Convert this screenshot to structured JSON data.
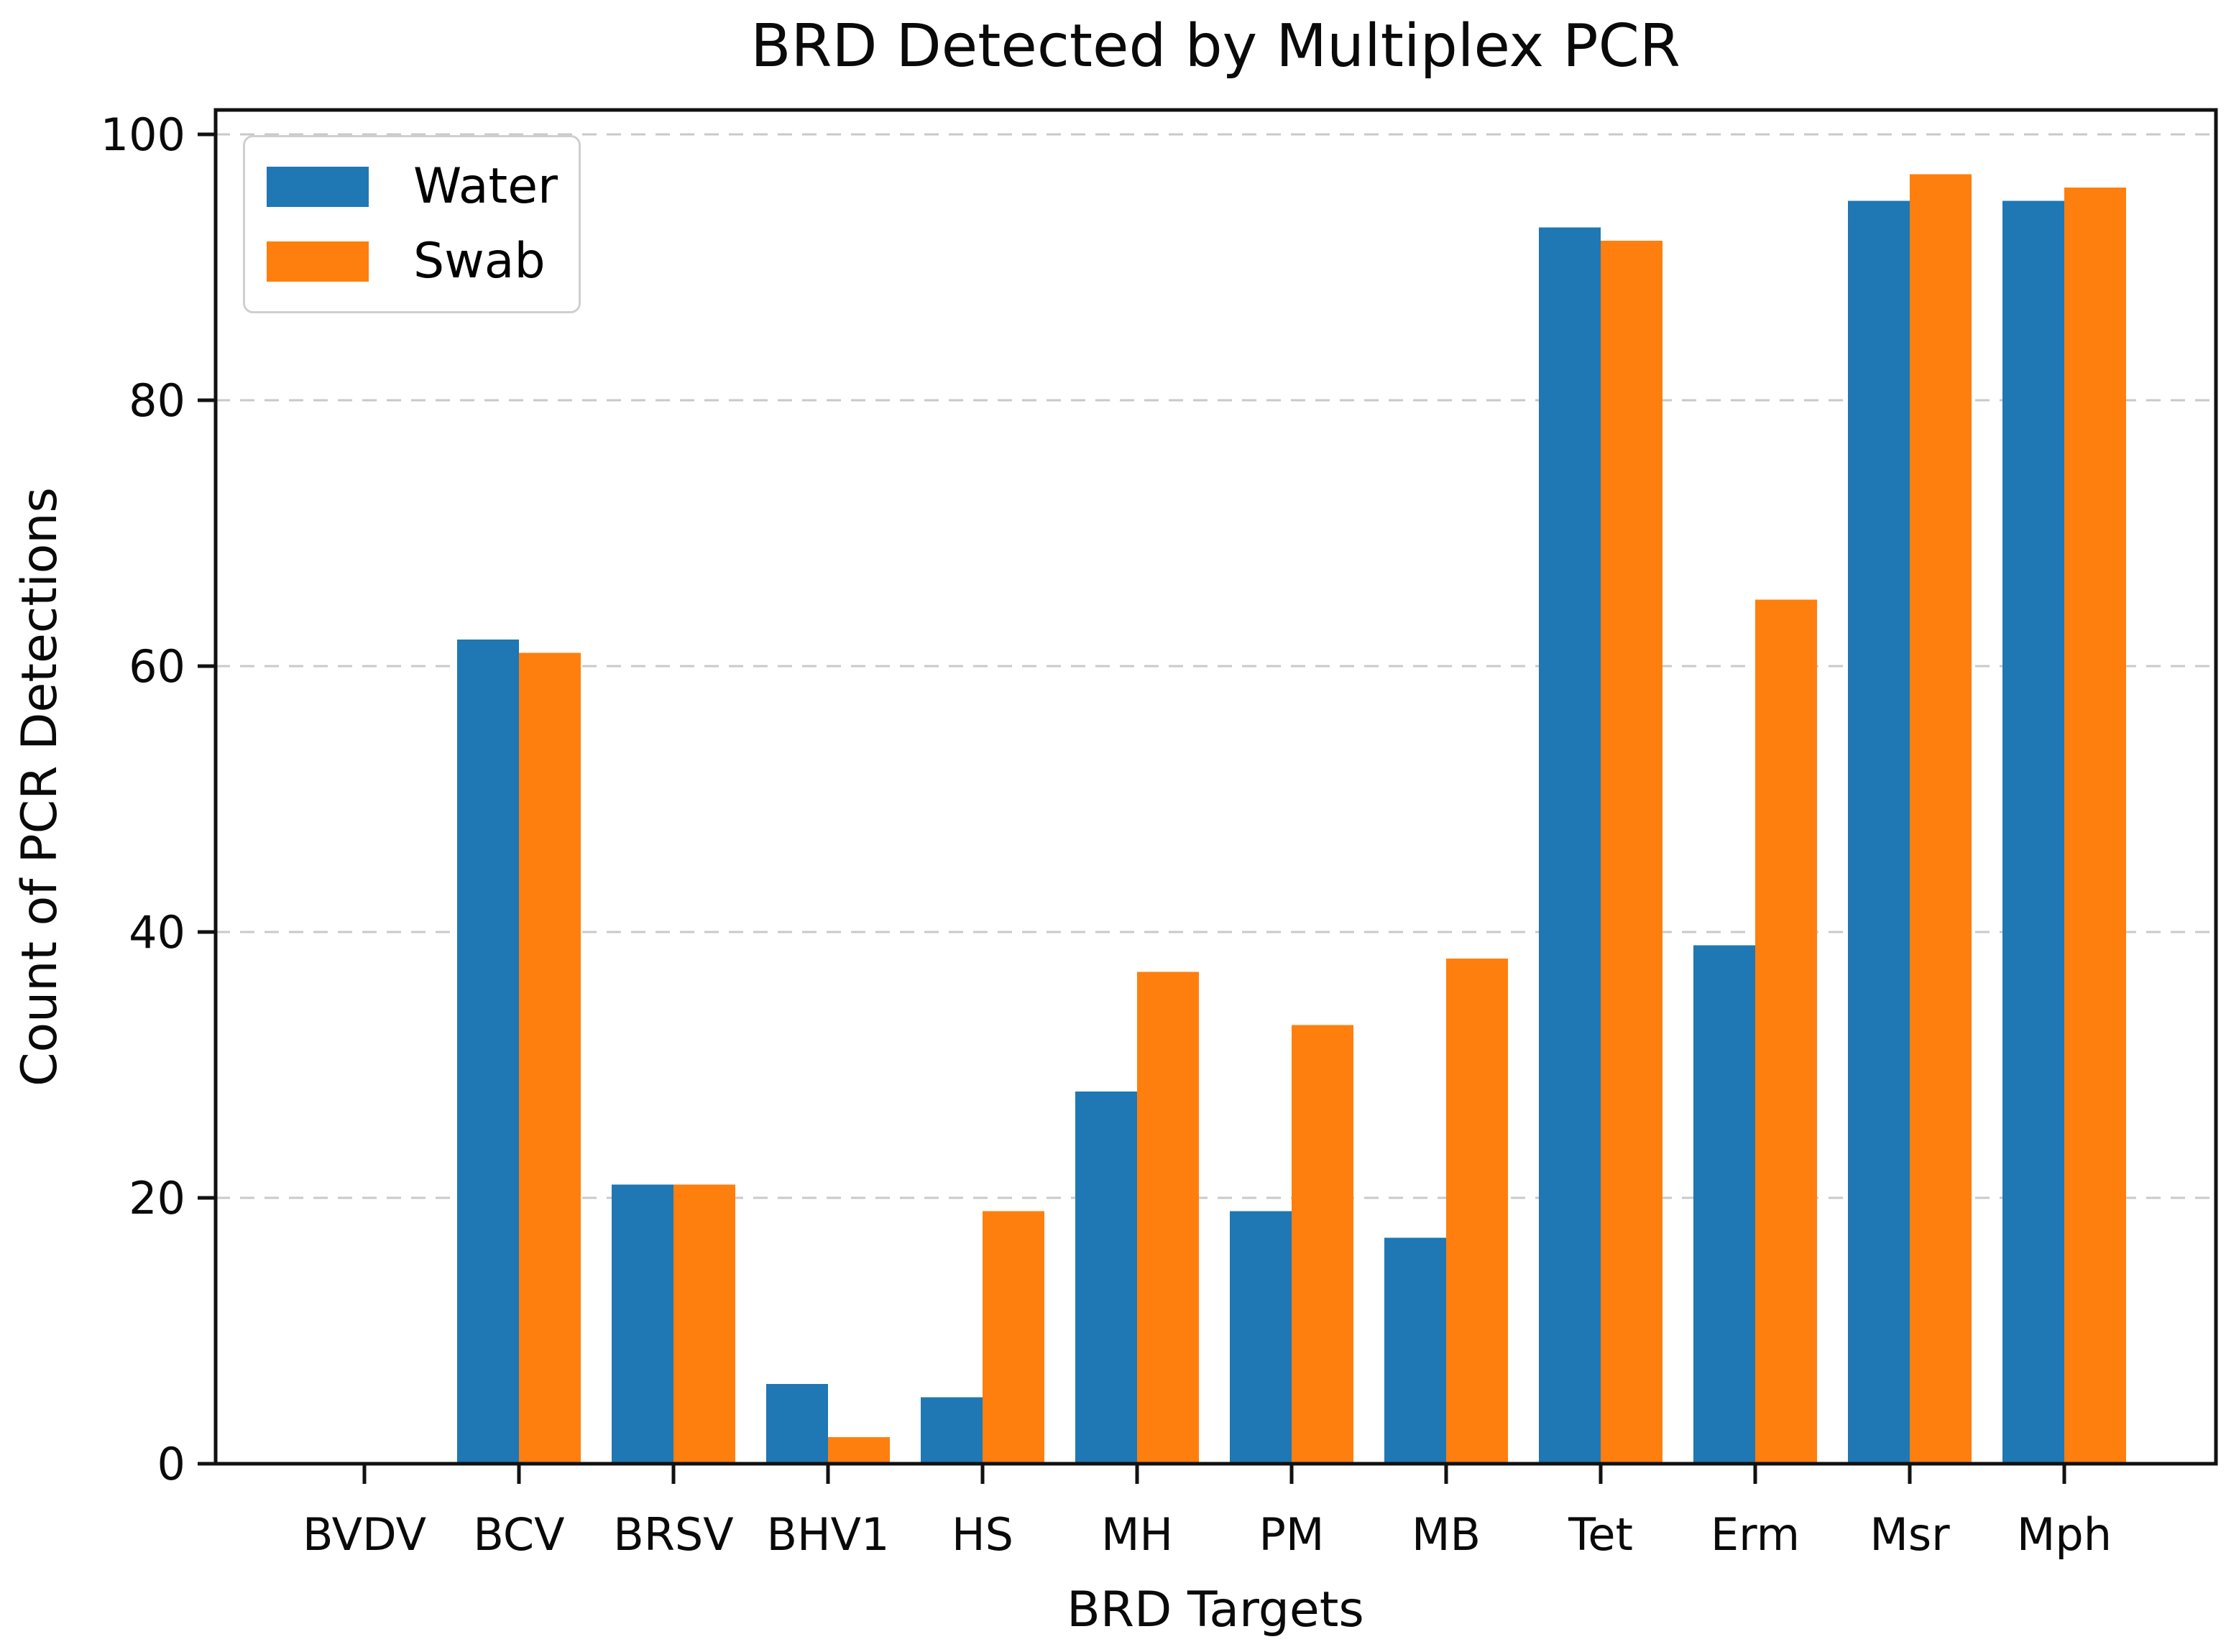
{
  "chart_data": {
    "type": "bar",
    "title": "BRD Detected by Multiplex PCR",
    "xlabel": "BRD Targets",
    "ylabel": "Count of PCR Detections",
    "categories": [
      "BVDV",
      "BCV",
      "BRSV",
      "BHV1",
      "HS",
      "MH",
      "PM",
      "MB",
      "Tet",
      "Erm",
      "Msr",
      "Mph"
    ],
    "series": [
      {
        "name": "Water",
        "color": "#1f77b4",
        "values": [
          0,
          62,
          21,
          6,
          5,
          28,
          19,
          17,
          93,
          39,
          95,
          95
        ]
      },
      {
        "name": "Swab",
        "color": "#ff7f0e",
        "values": [
          0,
          61,
          21,
          2,
          19,
          37,
          33,
          38,
          92,
          65,
          97,
          96
        ]
      }
    ],
    "ylim": [
      0,
      101.85
    ],
    "yticks": [
      0,
      20,
      40,
      60,
      80,
      100
    ],
    "grid": "dashed-horizontal",
    "grid_color": "#c9c9c9",
    "axis_color": "#111111",
    "background": "#ffffff",
    "legend_position": "upper-left"
  },
  "legend": {
    "items": [
      {
        "label": "Water",
        "color": "#1f77b4"
      },
      {
        "label": "Swab",
        "color": "#ff7f0e"
      }
    ]
  }
}
